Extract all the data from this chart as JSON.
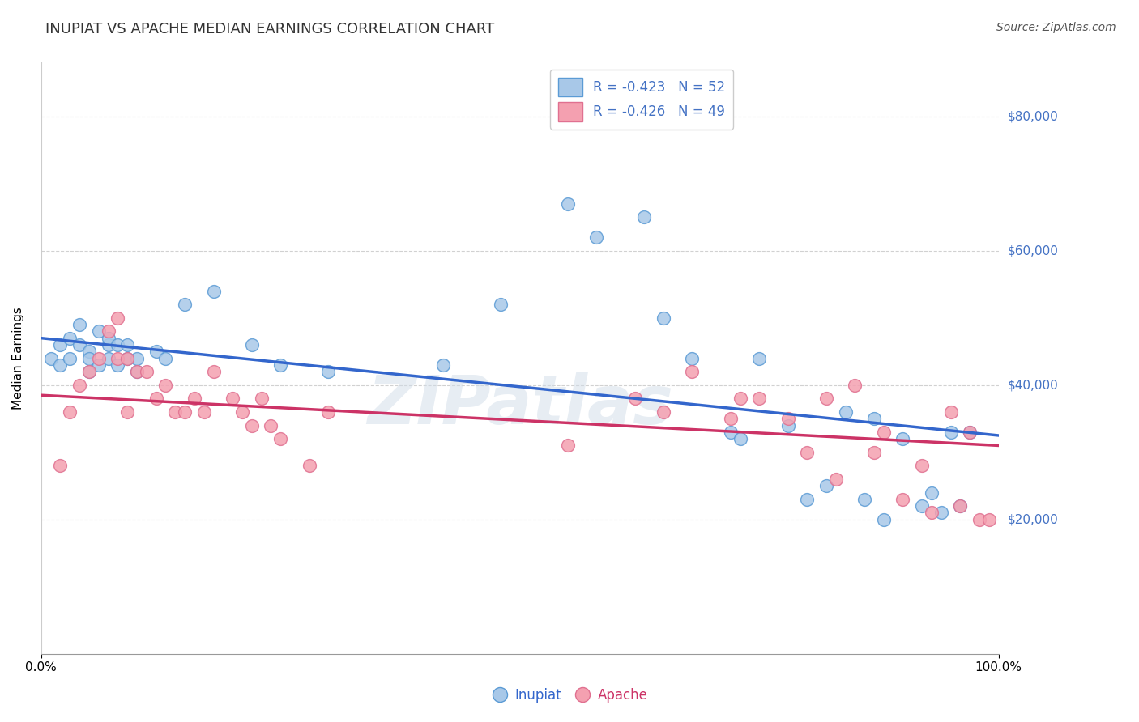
{
  "title": "INUPIAT VS APACHE MEDIAN EARNINGS CORRELATION CHART",
  "source": "Source: ZipAtlas.com",
  "ylabel": "Median Earnings",
  "xlim": [
    0,
    1.0
  ],
  "ylim": [
    0,
    88000
  ],
  "inupiat_color": "#a8c8e8",
  "apache_color": "#f4a0b0",
  "inupiat_edge_color": "#5b9bd5",
  "apache_edge_color": "#e07090",
  "inupiat_line_color": "#3366cc",
  "apache_line_color": "#cc3366",
  "background_color": "#ffffff",
  "grid_color": "#cccccc",
  "inupiat_x": [
    0.01,
    0.02,
    0.02,
    0.03,
    0.03,
    0.04,
    0.04,
    0.05,
    0.05,
    0.05,
    0.06,
    0.06,
    0.07,
    0.07,
    0.07,
    0.08,
    0.08,
    0.09,
    0.09,
    0.1,
    0.1,
    0.12,
    0.13,
    0.15,
    0.18,
    0.22,
    0.25,
    0.3,
    0.42,
    0.48,
    0.55,
    0.58,
    0.63,
    0.65,
    0.68,
    0.72,
    0.73,
    0.75,
    0.78,
    0.8,
    0.82,
    0.84,
    0.86,
    0.87,
    0.88,
    0.9,
    0.92,
    0.93,
    0.94,
    0.95,
    0.96,
    0.97
  ],
  "inupiat_y": [
    44000,
    46000,
    43000,
    47000,
    44000,
    49000,
    46000,
    45000,
    44000,
    42000,
    48000,
    43000,
    44000,
    46000,
    47000,
    46000,
    43000,
    44000,
    46000,
    42000,
    44000,
    45000,
    44000,
    52000,
    54000,
    46000,
    43000,
    42000,
    43000,
    52000,
    67000,
    62000,
    65000,
    50000,
    44000,
    33000,
    32000,
    44000,
    34000,
    23000,
    25000,
    36000,
    23000,
    35000,
    20000,
    32000,
    22000,
    24000,
    21000,
    33000,
    22000,
    33000
  ],
  "apache_x": [
    0.02,
    0.03,
    0.04,
    0.05,
    0.06,
    0.07,
    0.08,
    0.08,
    0.09,
    0.09,
    0.1,
    0.11,
    0.12,
    0.13,
    0.14,
    0.15,
    0.16,
    0.17,
    0.18,
    0.2,
    0.21,
    0.22,
    0.23,
    0.24,
    0.25,
    0.28,
    0.3,
    0.55,
    0.62,
    0.65,
    0.68,
    0.72,
    0.73,
    0.75,
    0.78,
    0.8,
    0.82,
    0.83,
    0.85,
    0.87,
    0.88,
    0.9,
    0.92,
    0.93,
    0.95,
    0.96,
    0.97,
    0.98,
    0.99
  ],
  "apache_y": [
    28000,
    36000,
    40000,
    42000,
    44000,
    48000,
    44000,
    50000,
    36000,
    44000,
    42000,
    42000,
    38000,
    40000,
    36000,
    36000,
    38000,
    36000,
    42000,
    38000,
    36000,
    34000,
    38000,
    34000,
    32000,
    28000,
    36000,
    31000,
    38000,
    36000,
    42000,
    35000,
    38000,
    38000,
    35000,
    30000,
    38000,
    26000,
    40000,
    30000,
    33000,
    23000,
    28000,
    21000,
    36000,
    22000,
    33000,
    20000,
    20000
  ],
  "inupiat_trend_x": [
    0.0,
    1.0
  ],
  "inupiat_trend_y": [
    47000,
    32500
  ],
  "apache_trend_x": [
    0.0,
    1.0
  ],
  "apache_trend_y": [
    38500,
    31000
  ],
  "ytick_vals": [
    20000,
    40000,
    60000,
    80000
  ],
  "watermark": "ZIPatlas",
  "title_fontsize": 13,
  "label_fontsize": 11,
  "tick_fontsize": 11,
  "legend_fontsize": 12
}
